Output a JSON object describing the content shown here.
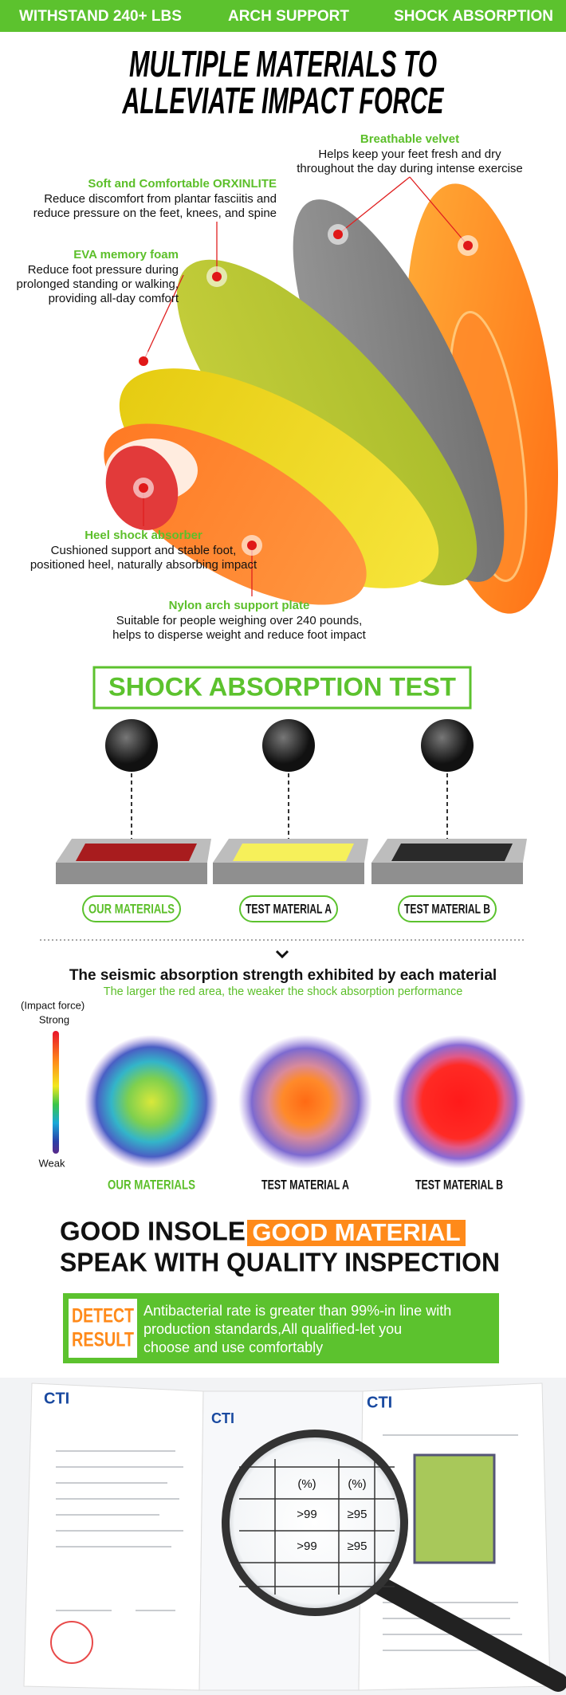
{
  "top_bar": [
    "WITHSTAND 240+ LBS",
    "ARCH SUPPORT",
    "SHOCK ABSORPTION"
  ],
  "title": [
    "MULTIPLE MATERIALS TO",
    "ALLEVIATE IMPACT FORCE"
  ],
  "layers": [
    {
      "name": "Breathable velvet",
      "lines": [
        "Helps keep your feet fresh and dry",
        "throughout the day during intense exercise"
      ]
    },
    {
      "name": "Soft and Comfortable ORXINLITE",
      "lines": [
        "Reduce discomfort from plantar fasciitis and",
        "reduce pressure on the feet, knees, and spine"
      ]
    },
    {
      "name": "EVA memory foam",
      "lines": [
        "Reduce foot pressure during",
        "prolonged standing or walking,",
        "providing all-day comfort"
      ]
    },
    {
      "name": "Heel shock absorber",
      "lines": [
        "Cushioned support and stable foot,",
        "positioned heel, naturally absorbing impact"
      ]
    },
    {
      "name": "Nylon arch support plate",
      "lines": [
        "Suitable for people weighing over 240 pounds,",
        "helps to disperse weight and reduce foot impact"
      ]
    }
  ],
  "test_title": "SHOCK ABSORPTION TEST",
  "materials": [
    "OUR MATERIALS",
    "TEST MATERIAL A",
    "TEST MATERIAL B"
  ],
  "seismic": {
    "title": "The seismic absorption strength exhibited by each material",
    "subtitle": "The larger the red area, the weaker the shock absorption performance",
    "axis_label": "(Impact force)",
    "strong": "Strong",
    "weak": "Weak"
  },
  "quality": {
    "line1": "GOOD INSOLE",
    "highlight": "GOOD MATERIAL",
    "line2": "SPEAK WITH QUALITY INSPECTION"
  },
  "detect": {
    "badge": [
      "DETECT",
      "RESULT"
    ],
    "text": [
      "Antibacterial rate is greater than 99%-in line with",
      "production standards,All qualified-let you",
      "choose and use comfortably"
    ]
  },
  "report": {
    "brand": "CTI",
    "cells": [
      "(%)",
      "(%)",
      ">99",
      "≥95",
      ">99",
      "≥95"
    ]
  }
}
